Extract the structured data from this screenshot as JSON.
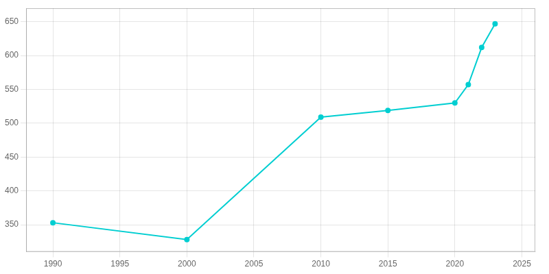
{
  "chart_data": {
    "type": "line",
    "x": [
      1990,
      2000,
      2010,
      2015,
      2020,
      2021,
      2022,
      2023
    ],
    "values": [
      353,
      328,
      509,
      519,
      530,
      557,
      612,
      647
    ],
    "color": "#00CED1",
    "marker": "circle",
    "xlim": [
      1988,
      2026
    ],
    "ylim": [
      310,
      670
    ],
    "xticks": [
      1990,
      1995,
      2000,
      2005,
      2010,
      2015,
      2020,
      2025
    ],
    "yticks": [
      350,
      400,
      450,
      500,
      550,
      600,
      650
    ],
    "grid": true
  }
}
